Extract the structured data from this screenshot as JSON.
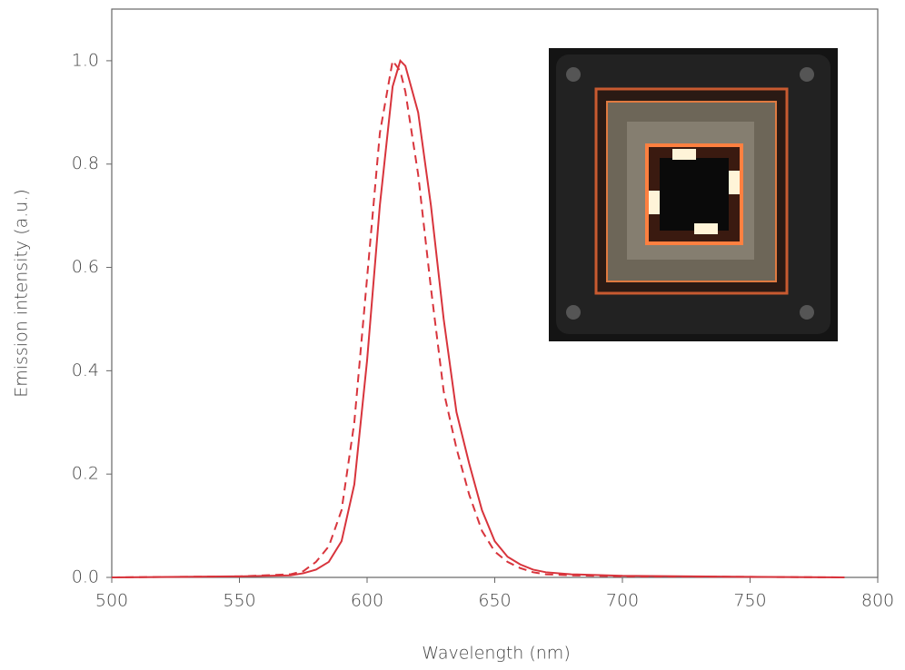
{
  "chart_data": {
    "type": "line",
    "xlabel": "Wavelength (nm)",
    "ylabel": "Emission intensity (a.u.)",
    "x": [
      500,
      550,
      570,
      575,
      580,
      585,
      590,
      595,
      600,
      605,
      610,
      613,
      615,
      620,
      625,
      630,
      635,
      640,
      645,
      650,
      655,
      660,
      665,
      670,
      680,
      700,
      750,
      787
    ],
    "series": [
      {
        "color": "#d8343c",
        "dash": "solid",
        "values": [
          0,
          0.002,
          0.004,
          0.008,
          0.015,
          0.03,
          0.07,
          0.18,
          0.42,
          0.72,
          0.95,
          1.0,
          0.99,
          0.9,
          0.72,
          0.5,
          0.32,
          0.22,
          0.13,
          0.07,
          0.04,
          0.025,
          0.015,
          0.01,
          0.006,
          0.003,
          0.001,
          0
        ]
      },
      {
        "color": "#d8343c",
        "dash": "dashed",
        "values": [
          0,
          0.002,
          0.006,
          0.012,
          0.03,
          0.06,
          0.13,
          0.3,
          0.58,
          0.86,
          1.0,
          0.98,
          0.94,
          0.78,
          0.56,
          0.36,
          0.25,
          0.16,
          0.09,
          0.05,
          0.03,
          0.018,
          0.01,
          0.006,
          0.004,
          0.002,
          0.001,
          0
        ]
      }
    ],
    "xlim": [
      500,
      800
    ],
    "ylim": [
      0,
      1.1
    ],
    "xticks": [
      500,
      550,
      600,
      650,
      700,
      750,
      800
    ],
    "yticks": [
      {
        "value": 0,
        "label": "0.0"
      },
      {
        "value": 0.2,
        "label": "0.2"
      },
      {
        "value": 0.4,
        "label": "0.4"
      },
      {
        "value": 0.6,
        "label": "0.6"
      },
      {
        "value": 0.8,
        "label": "0.8"
      },
      {
        "value": 1.0,
        "label": "1.0"
      }
    ],
    "grid": false
  }
}
